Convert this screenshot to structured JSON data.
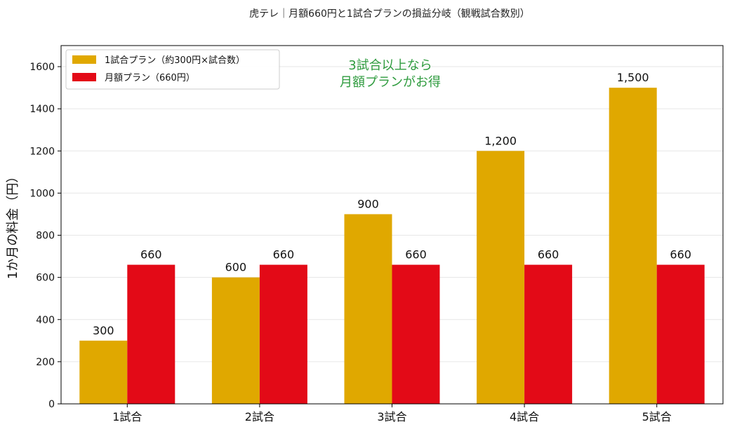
{
  "chart_data": {
    "type": "bar",
    "title": "虎テレ｜月額660円と1試合プランの損益分岐（観戦試合数別）",
    "xlabel": "",
    "ylabel": "1か月の料金（円）",
    "categories": [
      "1試合",
      "2試合",
      "3試合",
      "4試合",
      "5試合"
    ],
    "ylim": [
      0,
      1700
    ],
    "yticks": [
      0,
      200,
      400,
      600,
      800,
      1000,
      1200,
      1400,
      1600
    ],
    "grid": true,
    "legend_position": "top-left",
    "series": [
      {
        "name": "1試合プラン（約300円×試合数）",
        "color": "#E0A800",
        "values": [
          300,
          600,
          900,
          1200,
          1500
        ],
        "labels": [
          "300",
          "600",
          "900",
          "1,200",
          "1,500"
        ]
      },
      {
        "name": "月額プラン（660円）",
        "color": "#E30A17",
        "values": [
          660,
          660,
          660,
          660,
          660
        ],
        "labels": [
          "660",
          "660",
          "660",
          "660",
          "660"
        ]
      }
    ],
    "annotation": {
      "lines": [
        "3試合以上なら",
        "月額プランがお得"
      ],
      "color": "#2E9B3E"
    }
  }
}
